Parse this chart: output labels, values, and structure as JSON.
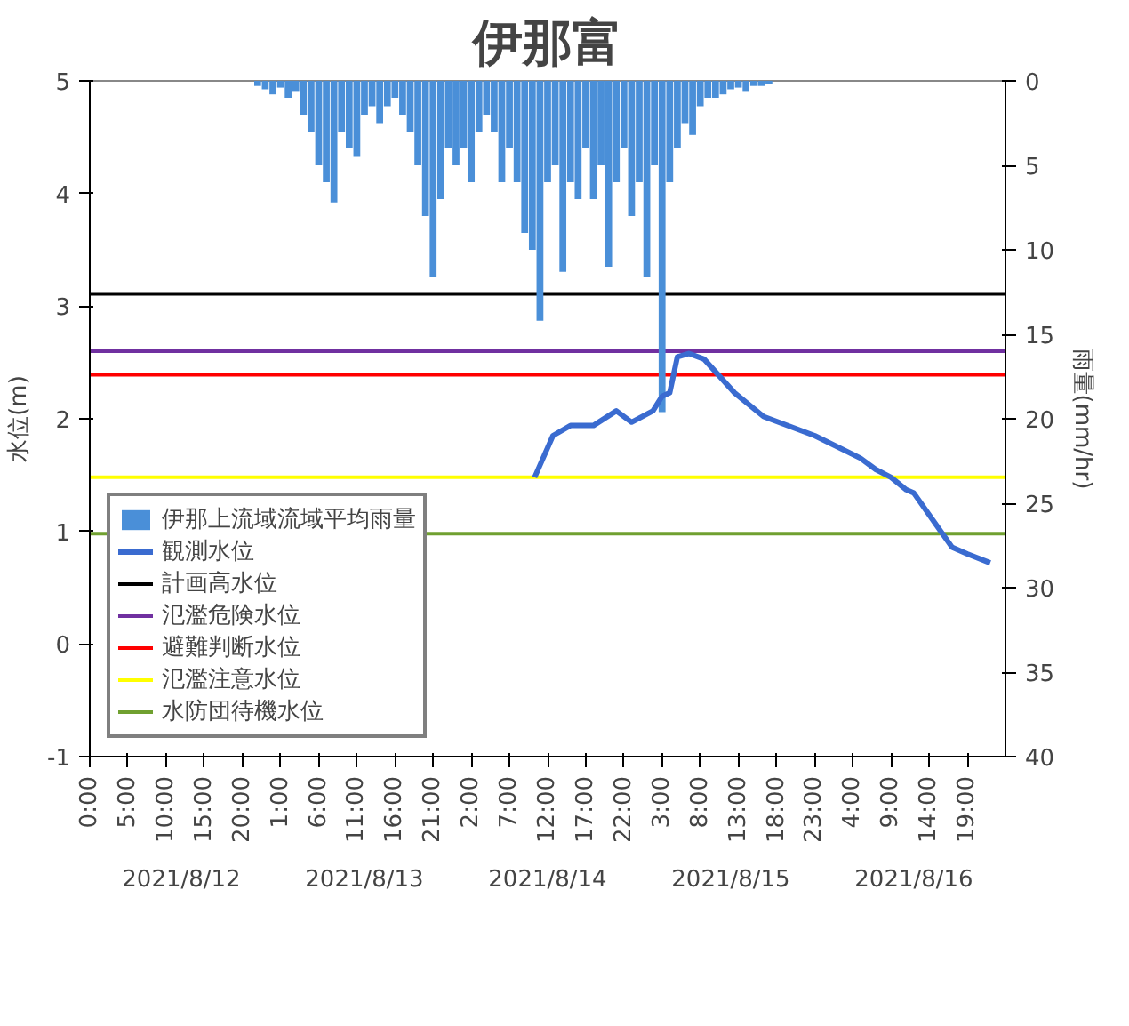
{
  "chart_data": {
    "type": "line",
    "title": "伊那富",
    "ylabel": "水位(m)",
    "y2label": "雨量(mm/hr)",
    "xlim": [
      "2021-08-12T00:00",
      "2021-08-17T00:00"
    ],
    "ylim": [
      -1,
      5
    ],
    "yticks": [
      -1,
      0,
      1,
      2,
      3,
      4,
      5
    ],
    "y2lim": [
      40,
      0
    ],
    "y2ticks": [
      0,
      5,
      10,
      15,
      20,
      25,
      30,
      35,
      40
    ],
    "xticks": [
      {
        "value": "2021-08-12T00:00",
        "label": "0:00"
      },
      {
        "value": "2021-08-12T05:00",
        "label": "5:00"
      },
      {
        "value": "2021-08-12T10:00",
        "label": "10:00"
      },
      {
        "value": "2021-08-12T15:00",
        "label": "15:00"
      },
      {
        "value": "2021-08-12T20:00",
        "label": "20:00"
      },
      {
        "value": "2021-08-13T01:00",
        "label": "1:00"
      },
      {
        "value": "2021-08-13T06:00",
        "label": "6:00"
      },
      {
        "value": "2021-08-13T11:00",
        "label": "11:00"
      },
      {
        "value": "2021-08-13T16:00",
        "label": "16:00"
      },
      {
        "value": "2021-08-13T21:00",
        "label": "21:00"
      },
      {
        "value": "2021-08-14T02:00",
        "label": "2:00"
      },
      {
        "value": "2021-08-14T07:00",
        "label": "7:00"
      },
      {
        "value": "2021-08-14T12:00",
        "label": "12:00"
      },
      {
        "value": "2021-08-14T17:00",
        "label": "17:00"
      },
      {
        "value": "2021-08-14T22:00",
        "label": "22:00"
      },
      {
        "value": "2021-08-15T03:00",
        "label": "3:00"
      },
      {
        "value": "2021-08-15T08:00",
        "label": "8:00"
      },
      {
        "value": "2021-08-15T13:00",
        "label": "13:00"
      },
      {
        "value": "2021-08-15T18:00",
        "label": "18:00"
      },
      {
        "value": "2021-08-15T23:00",
        "label": "23:00"
      },
      {
        "value": "2021-08-16T04:00",
        "label": "4:00"
      },
      {
        "value": "2021-08-16T09:00",
        "label": "9:00"
      },
      {
        "value": "2021-08-16T14:00",
        "label": "14:00"
      },
      {
        "value": "2021-08-16T19:00",
        "label": "19:00"
      }
    ],
    "annotations": [
      "2021/8/12",
      "2021/8/13",
      "2021/8/14",
      "2021/8/15",
      "2021/8/16"
    ],
    "series": [
      {
        "name": "伊那上流域流域平均雨量",
        "type": "bar",
        "axis": "y2",
        "color": "#4a8fd8",
        "x": [
          "2021-08-12T22:00",
          "2021-08-12T23:00",
          "2021-08-13T00:00",
          "2021-08-13T01:00",
          "2021-08-13T02:00",
          "2021-08-13T03:00",
          "2021-08-13T04:00",
          "2021-08-13T05:00",
          "2021-08-13T06:00",
          "2021-08-13T07:00",
          "2021-08-13T08:00",
          "2021-08-13T09:00",
          "2021-08-13T10:00",
          "2021-08-13T11:00",
          "2021-08-13T12:00",
          "2021-08-13T13:00",
          "2021-08-13T14:00",
          "2021-08-13T15:00",
          "2021-08-13T16:00",
          "2021-08-13T17:00",
          "2021-08-13T18:00",
          "2021-08-13T19:00",
          "2021-08-13T20:00",
          "2021-08-13T21:00",
          "2021-08-13T22:00",
          "2021-08-13T23:00",
          "2021-08-14T00:00",
          "2021-08-14T01:00",
          "2021-08-14T02:00",
          "2021-08-14T03:00",
          "2021-08-14T04:00",
          "2021-08-14T05:00",
          "2021-08-14T06:00",
          "2021-08-14T07:00",
          "2021-08-14T08:00",
          "2021-08-14T09:00",
          "2021-08-14T10:00",
          "2021-08-14T11:00",
          "2021-08-14T12:00",
          "2021-08-14T13:00",
          "2021-08-14T14:00",
          "2021-08-14T15:00",
          "2021-08-14T16:00",
          "2021-08-14T17:00",
          "2021-08-14T18:00",
          "2021-08-14T19:00",
          "2021-08-14T20:00",
          "2021-08-14T21:00",
          "2021-08-14T22:00",
          "2021-08-14T23:00",
          "2021-08-15T00:00",
          "2021-08-15T01:00",
          "2021-08-15T02:00",
          "2021-08-15T03:00",
          "2021-08-15T04:00",
          "2021-08-15T05:00",
          "2021-08-15T06:00",
          "2021-08-15T07:00",
          "2021-08-15T08:00",
          "2021-08-15T09:00",
          "2021-08-15T10:00",
          "2021-08-15T11:00",
          "2021-08-15T12:00",
          "2021-08-15T13:00",
          "2021-08-15T14:00",
          "2021-08-15T15:00",
          "2021-08-15T16:00",
          "2021-08-15T17:00"
        ],
        "values": [
          0.3,
          0.5,
          0.8,
          0.4,
          1,
          0.6,
          2,
          3,
          5,
          6,
          7.2,
          3,
          4,
          4.5,
          2,
          1.5,
          2.5,
          1.5,
          1,
          2,
          3,
          5,
          8,
          11.6,
          7,
          4,
          5,
          4,
          6,
          3,
          2,
          3,
          6,
          4,
          6,
          9,
          10,
          14.2,
          6,
          5,
          11.3,
          6,
          7,
          4,
          7,
          5,
          11,
          6,
          4,
          8,
          6,
          11.6,
          5,
          19.6,
          6,
          4,
          2.5,
          3.2,
          1.5,
          1,
          1,
          0.8,
          0.5,
          0.4,
          0.6,
          0.3,
          0.3,
          0.2
        ]
      },
      {
        "name": "観測水位",
        "color": "#3a6bd0",
        "x": [
          "2021-08-14T10:18",
          "2021-08-14T12:42",
          "2021-08-14T15:00",
          "2021-08-14T18:00",
          "2021-08-14T21:00",
          "2021-08-14T23:00",
          "2021-08-15T01:48",
          "2021-08-15T03:00",
          "2021-08-15T04:00",
          "2021-08-15T05:00",
          "2021-08-15T06:30",
          "2021-08-15T08:30",
          "2021-08-15T12:30",
          "2021-08-15T16:18",
          "2021-08-15T23:00",
          "2021-08-16T05:00",
          "2021-08-16T07:00",
          "2021-08-16T09:00",
          "2021-08-16T11:00",
          "2021-08-16T12:00",
          "2021-08-16T15:00",
          "2021-08-16T17:00",
          "2021-08-16T19:00",
          "2021-08-16T22:00"
        ],
        "values": [
          1.48,
          1.85,
          1.94,
          1.94,
          2.07,
          1.97,
          2.07,
          2.2,
          2.23,
          2.55,
          2.58,
          2.53,
          2.23,
          2.02,
          1.85,
          1.65,
          1.55,
          1.48,
          1.37,
          1.34,
          1.05,
          0.86,
          0.8,
          0.72
        ]
      }
    ],
    "ref_lines": [
      {
        "axis": "y",
        "value": 3.11,
        "label": "計画高水位",
        "color": "#000000"
      },
      {
        "axis": "y",
        "value": 2.6,
        "label": "氾濫危険水位",
        "color": "#7030a0"
      },
      {
        "axis": "y",
        "value": 2.39,
        "label": "避難判断水位",
        "color": "#ff0000"
      },
      {
        "axis": "y",
        "value": 1.48,
        "label": "氾濫注意水位",
        "color": "#ffff00"
      },
      {
        "axis": "y",
        "value": 0.98,
        "label": "水防団待機水位",
        "color": "#70a030"
      }
    ],
    "legend": "bottom left",
    "grid": false
  }
}
